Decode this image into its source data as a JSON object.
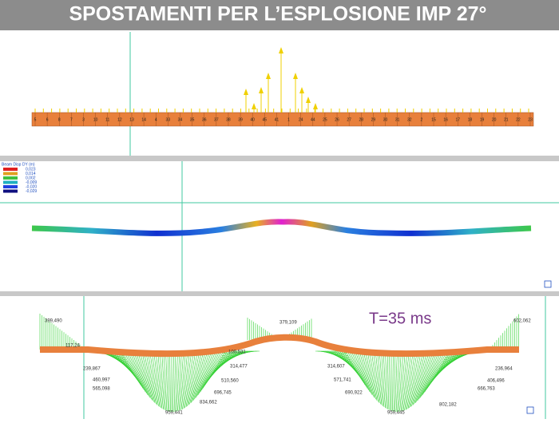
{
  "title": "SPOSTAMENTI PER L’ESPLOSIONE IMP 27°",
  "panel1": {
    "node_labels": [
      "5",
      "6",
      "8",
      "7",
      "3",
      "10",
      "11",
      "12",
      "13",
      "14",
      "4",
      "33",
      "34",
      "35",
      "36",
      "37",
      "38",
      "39",
      "40",
      "45",
      "41",
      "1",
      "24",
      "44",
      "25",
      "26",
      "27",
      "28",
      "29",
      "30",
      "31",
      "32",
      "2",
      "15",
      "16",
      "17",
      "18",
      "19",
      "20",
      "21",
      "22",
      "23"
    ]
  },
  "panel2": {
    "legend_title": "Beam Disp DY (m)",
    "legend_values": [
      "0,023",
      "0,014",
      "0,002",
      "-0,009",
      "-0,020",
      "-0,029"
    ]
  },
  "panel3": {
    "annotation": "T=35 ms",
    "value_labels": [
      "399,490",
      "117,24",
      "239,867",
      "460,997",
      "565,098",
      "959,441",
      "834,662",
      "696,745",
      "510,560",
      "314,477",
      "100,531",
      "379,109",
      "602,062",
      "236,964",
      "406,496",
      "666,763",
      "802,182",
      "959,445",
      "314,607",
      "571,741",
      "690,922"
    ]
  }
}
